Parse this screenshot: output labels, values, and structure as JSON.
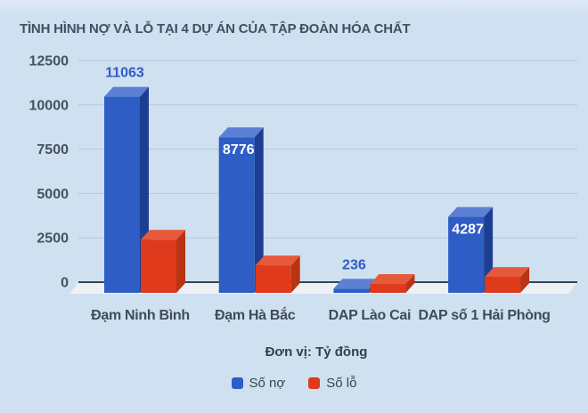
{
  "title": "TÌNH HÌNH NỢ VÀ LỖ TẠI 4 DỰ ÁN CỦA TẬP ĐOÀN HÓA CHẤT",
  "unit_note": "Đơn vị: Tỷ đồng",
  "legend": {
    "items": [
      {
        "label": "Số nợ",
        "color": "#2e5dc6"
      },
      {
        "label": "Số lỗ",
        "color": "#df3a1b"
      }
    ]
  },
  "chart_data": {
    "type": "bar",
    "style": "3d-column",
    "title": "TÌNH HÌNH NỢ VÀ LỖ TẠI 4 DỰ ÁN CỦA TẬP ĐOÀN HÓA CHẤT",
    "unit": "Tỷ đồng",
    "categories": [
      "Đạm Ninh Bình",
      "Đạm Hà Bắc",
      "DAP Lào Cai",
      "DAP số 1 Hải Phòng"
    ],
    "series": [
      {
        "name": "Số nợ",
        "slug": "so-no",
        "values": [
          11063,
          8776,
          236,
          4287
        ],
        "data_labels": [
          "11063",
          "8776",
          "236",
          "4287"
        ],
        "label_placement": [
          "above",
          "inside",
          "above",
          "inside"
        ],
        "colors": {
          "front": "#2e5dc6",
          "top": "#5c80d4",
          "side": "#1d3e92"
        }
      },
      {
        "name": "Số lỗ",
        "slug": "so-lo",
        "values": [
          3000,
          1550,
          500,
          900
        ],
        "values_approximate": true,
        "data_labels": [
          null,
          null,
          null,
          null
        ],
        "label_placement": [
          null,
          null,
          null,
          null
        ],
        "colors": {
          "front": "#df3a1b",
          "top": "#e7593b",
          "side": "#b83413"
        }
      }
    ],
    "y_axis": {
      "ticks": [
        0,
        2500,
        5000,
        7500,
        10000,
        12500
      ],
      "range": [
        0,
        12500
      ]
    },
    "grid": true,
    "legend_position": "bottom"
  },
  "theme": {
    "background": "#cfe0f0",
    "gridline": "#b5c7d8",
    "axis_line": "#3a444e",
    "floor": "#edf1f5",
    "value_label_inside_color": "#ffffff"
  }
}
